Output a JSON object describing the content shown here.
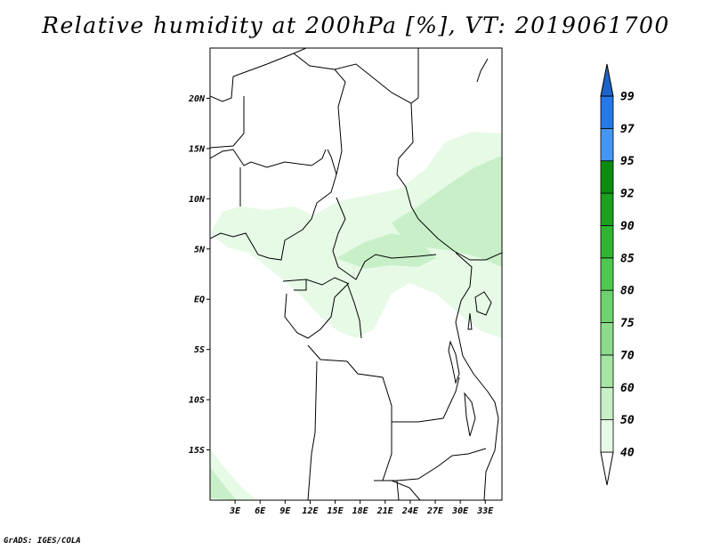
{
  "title": "Relative humidity at 200hPa [%], VT: 2019061700",
  "credit": "GrADS: IGES/COLA",
  "map": {
    "lon_range": [
      0,
      35
    ],
    "lat_range": [
      -20,
      25
    ],
    "lon_ticks": [
      {
        "value": 3,
        "label": "3E"
      },
      {
        "value": 6,
        "label": "6E"
      },
      {
        "value": 9,
        "label": "9E"
      },
      {
        "value": 12,
        "label": "12E"
      },
      {
        "value": 15,
        "label": "15E"
      },
      {
        "value": 18,
        "label": "18E"
      },
      {
        "value": 21,
        "label": "21E"
      },
      {
        "value": 24,
        "label": "24E"
      },
      {
        "value": 27,
        "label": "27E"
      },
      {
        "value": 30,
        "label": "30E"
      },
      {
        "value": 33,
        "label": "33E"
      }
    ],
    "lat_ticks": [
      {
        "value": 20,
        "label": "20N"
      },
      {
        "value": 15,
        "label": "15N"
      },
      {
        "value": 10,
        "label": "10N"
      },
      {
        "value": 5,
        "label": "5N"
      },
      {
        "value": 0,
        "label": "EQ"
      },
      {
        "value": -5,
        "label": "5S"
      },
      {
        "value": -10,
        "label": "10S"
      },
      {
        "value": -15,
        "label": "15S"
      }
    ]
  },
  "colorbar": {
    "levels": [
      "40",
      "50",
      "60",
      "70",
      "75",
      "80",
      "85",
      "90",
      "92",
      "95",
      "97",
      "99"
    ],
    "colors": [
      "#ffffff",
      "#e6fae6",
      "#c8f0c8",
      "#a5e6a5",
      "#8cdc8c",
      "#6ed26e",
      "#50c850",
      "#32b432",
      "#1ea01e",
      "#0f8c0f",
      "#4696f0",
      "#2878e6",
      "#1e64c8"
    ]
  },
  "colors": {
    "background": "#ffffff",
    "border": "#000000",
    "humidity_light": "#e6fae6",
    "humidity_mid": "#c8f0c8"
  }
}
